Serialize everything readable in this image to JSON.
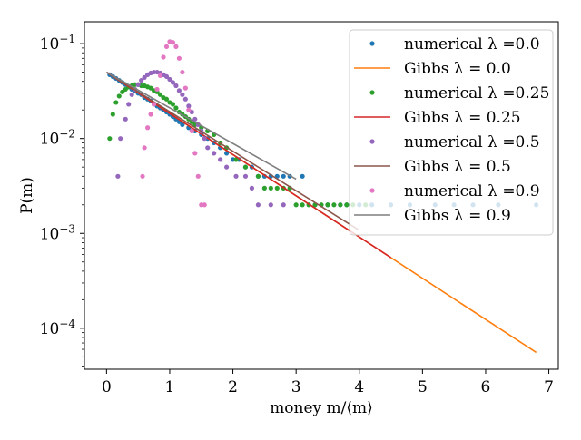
{
  "chart_data": {
    "type": "scatter",
    "xlabel": "money m/⟨m⟩",
    "ylabel": "P(m)",
    "xlim": [
      -0.35,
      7.15
    ],
    "ylim": [
      3.7e-05,
      0.17
    ],
    "yscale": "log",
    "grid": false,
    "legend_position": "top-right",
    "x_ticks": [
      0,
      1,
      2,
      3,
      4,
      5,
      6,
      7
    ],
    "y_ticks": [
      0.0001,
      0.001,
      0.01,
      0.1
    ],
    "series": [
      {
        "name": "numerical λ =0.0",
        "kind": "points",
        "color": "#1f77b4",
        "points": [
          [
            0.05,
            0.047
          ],
          [
            0.1,
            0.045
          ],
          [
            0.15,
            0.043
          ],
          [
            0.2,
            0.041
          ],
          [
            0.25,
            0.039
          ],
          [
            0.3,
            0.037
          ],
          [
            0.35,
            0.035
          ],
          [
            0.4,
            0.033
          ],
          [
            0.45,
            0.032
          ],
          [
            0.5,
            0.03
          ],
          [
            0.55,
            0.029
          ],
          [
            0.6,
            0.027
          ],
          [
            0.65,
            0.026
          ],
          [
            0.7,
            0.025
          ],
          [
            0.75,
            0.023
          ],
          [
            0.8,
            0.022
          ],
          [
            0.85,
            0.021
          ],
          [
            0.9,
            0.02
          ],
          [
            0.95,
            0.019
          ],
          [
            1.0,
            0.018
          ],
          [
            1.05,
            0.017
          ],
          [
            1.1,
            0.016
          ],
          [
            1.15,
            0.015
          ],
          [
            1.2,
            0.014
          ],
          [
            1.3,
            0.013
          ],
          [
            1.4,
            0.012
          ],
          [
            1.5,
            0.011
          ],
          [
            1.6,
            0.01
          ],
          [
            1.7,
            0.009
          ],
          [
            1.8,
            0.008
          ],
          [
            1.9,
            0.007
          ],
          [
            2.0,
            0.006
          ],
          [
            2.1,
            0.006
          ],
          [
            2.2,
            0.005
          ],
          [
            2.3,
            0.005
          ],
          [
            2.4,
            0.004
          ],
          [
            2.5,
            0.004
          ],
          [
            2.6,
            0.004
          ],
          [
            2.7,
            0.004
          ],
          [
            2.8,
            0.004
          ],
          [
            2.9,
            0.004
          ],
          [
            3.1,
            0.004
          ],
          [
            3.3,
            0.002
          ],
          [
            3.5,
            0.002
          ],
          [
            3.7,
            0.002
          ],
          [
            3.8,
            0.002
          ],
          [
            4.0,
            0.002
          ],
          [
            4.2,
            0.002
          ],
          [
            4.5,
            0.002
          ],
          [
            4.8,
            0.002
          ],
          [
            5.2,
            0.002
          ],
          [
            5.5,
            0.002
          ],
          [
            5.8,
            0.002
          ],
          [
            6.2,
            0.002
          ],
          [
            6.8,
            0.002
          ]
        ]
      },
      {
        "name": "Gibbs λ = 0.0",
        "kind": "line",
        "color": "#ff7f0e",
        "points": [
          [
            0.0,
            0.05
          ],
          [
            6.8,
            5.57e-05
          ]
        ]
      },
      {
        "name": "numerical λ =0.25",
        "kind": "points",
        "color": "#2ca02c",
        "points": [
          [
            0.05,
            0.01
          ],
          [
            0.1,
            0.018
          ],
          [
            0.15,
            0.024
          ],
          [
            0.2,
            0.028
          ],
          [
            0.25,
            0.031
          ],
          [
            0.3,
            0.033
          ],
          [
            0.35,
            0.035
          ],
          [
            0.4,
            0.036
          ],
          [
            0.45,
            0.037
          ],
          [
            0.5,
            0.037
          ],
          [
            0.55,
            0.036
          ],
          [
            0.6,
            0.036
          ],
          [
            0.65,
            0.035
          ],
          [
            0.7,
            0.034
          ],
          [
            0.75,
            0.032
          ],
          [
            0.8,
            0.031
          ],
          [
            0.85,
            0.029
          ],
          [
            0.9,
            0.027
          ],
          [
            0.95,
            0.026
          ],
          [
            1.0,
            0.024
          ],
          [
            1.05,
            0.023
          ],
          [
            1.1,
            0.021
          ],
          [
            1.15,
            0.019
          ],
          [
            1.2,
            0.018
          ],
          [
            1.25,
            0.017
          ],
          [
            1.3,
            0.016
          ],
          [
            1.35,
            0.015
          ],
          [
            1.4,
            0.014
          ],
          [
            1.5,
            0.013
          ],
          [
            1.6,
            0.012
          ],
          [
            1.7,
            0.011
          ],
          [
            1.8,
            0.009
          ],
          [
            1.9,
            0.008
          ],
          [
            2.05,
            0.006
          ],
          [
            2.2,
            0.005
          ],
          [
            2.4,
            0.004
          ],
          [
            2.5,
            0.003
          ],
          [
            2.6,
            0.003
          ],
          [
            2.7,
            0.003
          ],
          [
            2.8,
            0.003
          ],
          [
            2.9,
            0.003
          ],
          [
            3.0,
            0.002
          ],
          [
            3.1,
            0.002
          ],
          [
            3.2,
            0.002
          ],
          [
            3.3,
            0.002
          ],
          [
            3.4,
            0.002
          ],
          [
            3.5,
            0.002
          ],
          [
            3.6,
            0.002
          ],
          [
            3.7,
            0.002
          ],
          [
            3.8,
            0.002
          ],
          [
            3.9,
            0.002
          ],
          [
            4.1,
            0.002
          ]
        ]
      },
      {
        "name": "Gibbs λ = 0.25",
        "kind": "line",
        "color": "#d62728",
        "points": [
          [
            0.0,
            0.05
          ],
          [
            4.5,
            0.000556
          ]
        ]
      },
      {
        "name": "numerical λ =0.5",
        "kind": "points",
        "color": "#9467bd",
        "points": [
          [
            0.18,
            0.004
          ],
          [
            0.22,
            0.01
          ],
          [
            0.3,
            0.016
          ],
          [
            0.35,
            0.023
          ],
          [
            0.4,
            0.029
          ],
          [
            0.45,
            0.033
          ],
          [
            0.5,
            0.037
          ],
          [
            0.55,
            0.041
          ],
          [
            0.6,
            0.044
          ],
          [
            0.65,
            0.047
          ],
          [
            0.7,
            0.049
          ],
          [
            0.75,
            0.05
          ],
          [
            0.8,
            0.05
          ],
          [
            0.85,
            0.049
          ],
          [
            0.9,
            0.047
          ],
          [
            0.95,
            0.045
          ],
          [
            1.0,
            0.042
          ],
          [
            1.05,
            0.039
          ],
          [
            1.1,
            0.036
          ],
          [
            1.15,
            0.032
          ],
          [
            1.2,
            0.029
          ],
          [
            1.25,
            0.026
          ],
          [
            1.3,
            0.022
          ],
          [
            1.35,
            0.019
          ],
          [
            1.4,
            0.016
          ],
          [
            1.45,
            0.014
          ],
          [
            1.5,
            0.012
          ],
          [
            1.55,
            0.01
          ],
          [
            1.6,
            0.008
          ],
          [
            1.7,
            0.007
          ],
          [
            1.8,
            0.006
          ],
          [
            1.9,
            0.005
          ],
          [
            2.05,
            0.004
          ],
          [
            2.2,
            0.004
          ],
          [
            2.3,
            0.003
          ],
          [
            2.4,
            0.002
          ],
          [
            2.6,
            0.002
          ],
          [
            2.8,
            0.002
          ]
        ]
      },
      {
        "name": "Gibbs λ = 0.5",
        "kind": "line",
        "color": "#8c564b",
        "points": [
          [
            0.0,
            0.05
          ],
          [
            4.0,
            0.00108
          ]
        ]
      },
      {
        "name": "numerical λ =0.9",
        "kind": "points",
        "color": "#e377c2",
        "points": [
          [
            0.57,
            0.004
          ],
          [
            0.6,
            0.008
          ],
          [
            0.65,
            0.013
          ],
          [
            0.7,
            0.018
          ],
          [
            0.75,
            0.023
          ],
          [
            0.8,
            0.033
          ],
          [
            0.85,
            0.046
          ],
          [
            0.9,
            0.072
          ],
          [
            0.95,
            0.093
          ],
          [
            1.0,
            0.105
          ],
          [
            1.05,
            0.103
          ],
          [
            1.1,
            0.093
          ],
          [
            1.15,
            0.07
          ],
          [
            1.2,
            0.05
          ],
          [
            1.25,
            0.034
          ],
          [
            1.3,
            0.02
          ],
          [
            1.35,
            0.012
          ],
          [
            1.4,
            0.007
          ],
          [
            1.45,
            0.004
          ],
          [
            1.5,
            0.002
          ],
          [
            1.55,
            0.002
          ]
        ]
      },
      {
        "name": "Gibbs λ = 0.9",
        "kind": "line",
        "color": "#7f7f7f",
        "points": [
          [
            0.0,
            0.05
          ],
          [
            3.0,
            0.00373
          ]
        ]
      }
    ]
  }
}
